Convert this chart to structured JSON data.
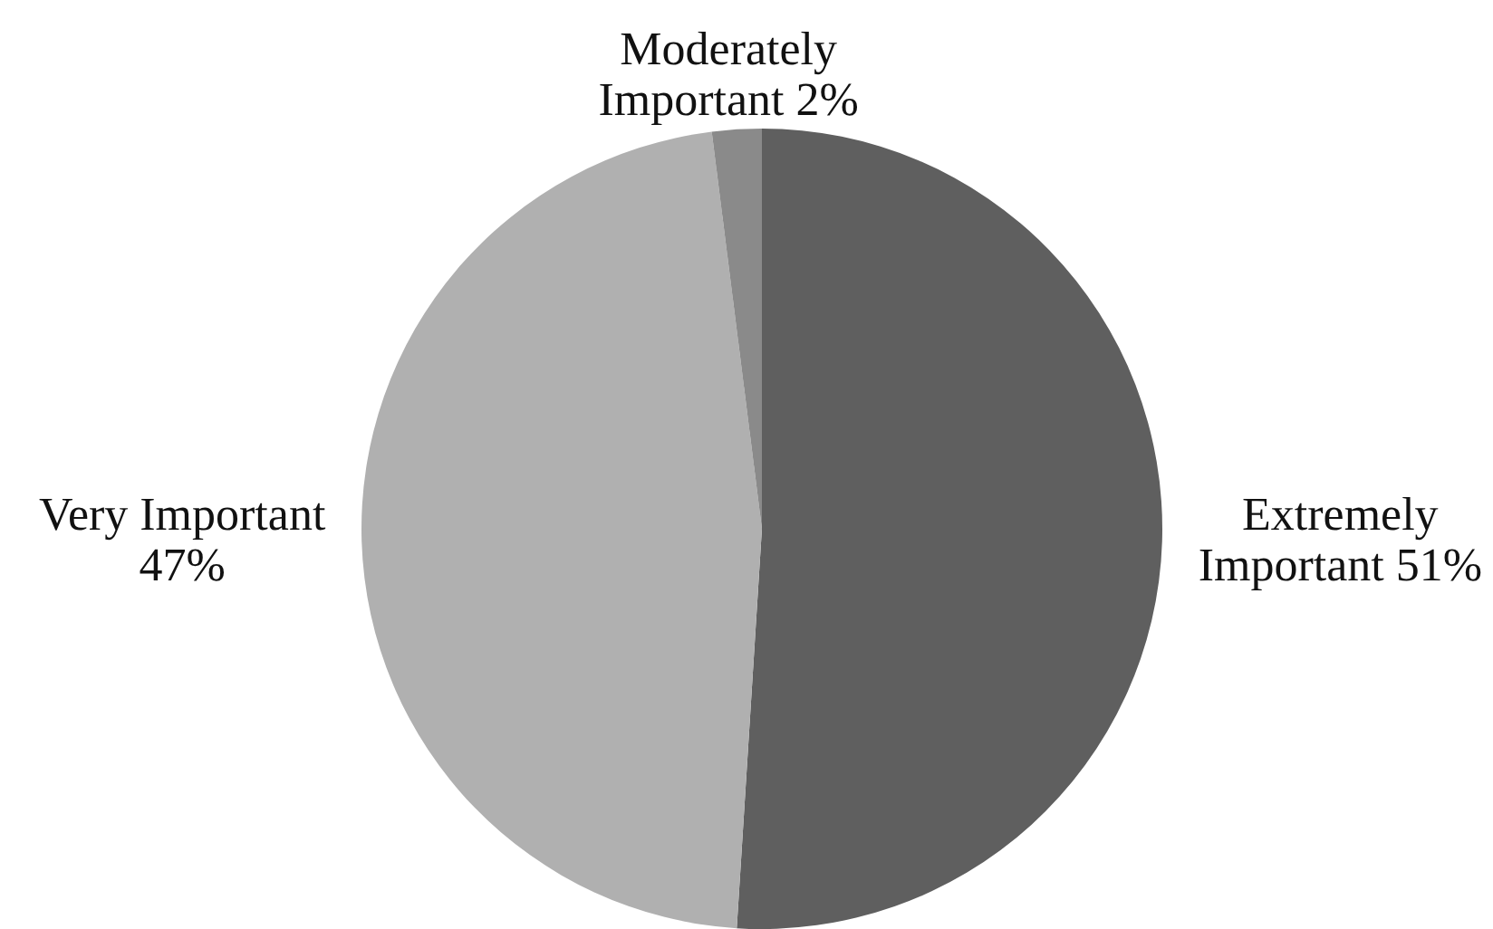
{
  "chart_data": {
    "type": "pie",
    "categories": [
      "Extremely Important",
      "Very Important",
      "Moderately Important"
    ],
    "values": [
      51,
      47,
      2
    ],
    "value_labels": [
      "51%",
      "47%",
      "2%"
    ],
    "colors": [
      "#5f5f5f",
      "#b0b0b0",
      "#8a8a8a"
    ]
  }
}
